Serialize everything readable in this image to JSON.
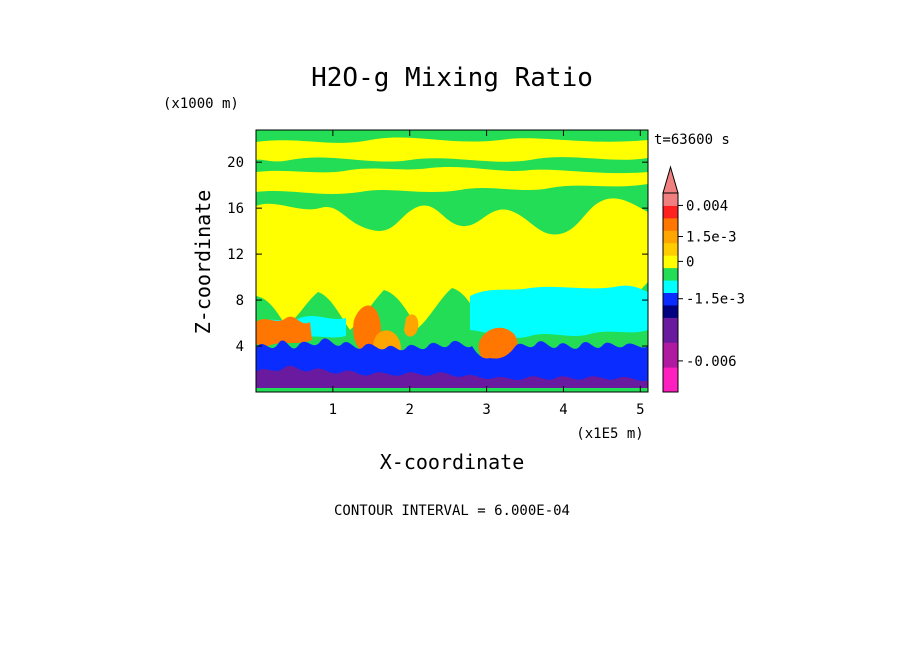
{
  "chart_data": {
    "type": "heatmap",
    "title": "H2O-g Mixing Ratio",
    "xlabel": "X-coordinate",
    "ylabel": "Z-coordinate",
    "x_unit": "(x1E5 m)",
    "y_unit": "(x1000 m)",
    "time_label": "t=63600 s",
    "contour_interval_label": "CONTOUR INTERVAL = 6.000E-04",
    "x_ticks": [
      1,
      2,
      3,
      4,
      5
    ],
    "x_tick_labels": [
      "1",
      "2",
      "3",
      "4",
      "5"
    ],
    "y_ticks": [
      4,
      8,
      12,
      16,
      20
    ],
    "y_tick_labels": [
      "4",
      "8",
      "12",
      "16",
      "20"
    ],
    "xlim": [
      0,
      5.1
    ],
    "ylim": [
      0,
      22.8
    ],
    "colorbar": {
      "bands": [
        {
          "color": "#ff1fbf"
        },
        {
          "color": "#ff1fbf"
        },
        {
          "color": "#b01aa0"
        },
        {
          "color": "#b01aa0"
        },
        {
          "color": "#6a1a9e"
        },
        {
          "color": "#6a1a9e"
        },
        {
          "color": "#000080"
        },
        {
          "color": "#0a2cff"
        },
        {
          "color": "#00ffff"
        },
        {
          "color": "#22dd55"
        },
        {
          "color": "#ffff00"
        },
        {
          "color": "#ffcc00"
        },
        {
          "color": "#ffa500"
        },
        {
          "color": "#ff7700"
        },
        {
          "color": "#ff2020"
        },
        {
          "color": "#f08080"
        }
      ],
      "labels": [
        {
          "text": "0.004",
          "boundary": 15
        },
        {
          "text": "1.5e-3",
          "boundary": 12.5
        },
        {
          "text": "0",
          "boundary": 10.5
        },
        {
          "text": "-1.5e-3",
          "boundary": 7.5
        },
        {
          "text": "-0.006",
          "boundary": 2.5
        }
      ]
    },
    "field_layers": [
      {
        "level": "background",
        "color": "#22dd55"
      },
      {
        "level": "anomaly_positive",
        "color": "#ffff00"
      },
      {
        "level": "anomaly_negative_weak",
        "color": "#00ffff"
      },
      {
        "level": "anomaly_positive_strong",
        "color": "#ff7700"
      },
      {
        "level": "anomaly_negative",
        "color": "#0a2cff"
      },
      {
        "level": "anomaly_negative_strong",
        "color": "#6a1a9e"
      }
    ]
  }
}
